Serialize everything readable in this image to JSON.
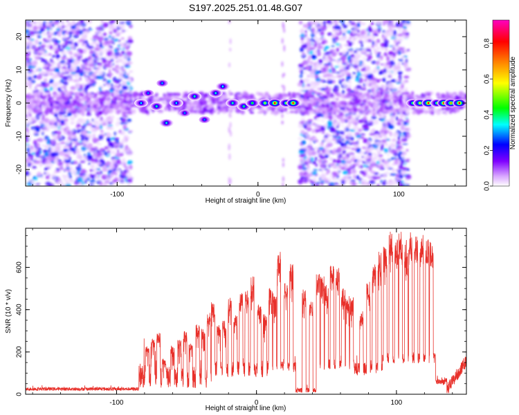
{
  "figure_title": "S197.2025.251.01.48.G07",
  "chart_data": [
    {
      "type": "heatmap",
      "title": "S197.2025.251.01.48.G07",
      "xlabel": "Height of straight line (km)",
      "ylabel": "Frequency (Hz)",
      "xlim": [
        -165,
        148
      ],
      "ylim": [
        -25,
        25
      ],
      "xticks": [
        -100,
        0,
        100
      ],
      "xtick_labels": [
        "-100",
        "0",
        "100"
      ],
      "yticks": [
        -20,
        -10,
        0,
        10,
        20
      ],
      "ytick_labels": [
        "-20",
        "-10",
        "0",
        "10",
        "20"
      ],
      "colorbar": {
        "label": "Normalized spectral amplitude",
        "range": [
          0,
          0.93
        ],
        "ticks": [
          0,
          0.2,
          0.4,
          0.6,
          0.8
        ],
        "tick_labels": [
          "0.0",
          "0.2",
          "0.4",
          "0.6",
          "0.8"
        ],
        "colormap": [
          "#ffffff",
          "#7f00ff",
          "#0000ff",
          "#00ffff",
          "#00ff00",
          "#ffff00",
          "#ff7f00",
          "#ff0000",
          "#ff00c0"
        ]
      },
      "noise_regions": [
        {
          "x_range": [
            -165,
            -90
          ],
          "freq_range": [
            -25,
            25
          ],
          "level": "scattered 0.05-0.3"
        },
        {
          "x_range": [
            30,
            107
          ],
          "freq_range": [
            -25,
            25
          ],
          "level": "scattered 0.05-0.3"
        },
        {
          "x_range": [
            -165,
            148
          ],
          "freq_range": [
            -3,
            3
          ],
          "level": "baseline 0.1"
        }
      ],
      "signal_blobs": [
        {
          "x": -83,
          "f": 0,
          "amp": 0.35
        },
        {
          "x": -78,
          "f": 3,
          "amp": 0.3
        },
        {
          "x": -72,
          "f": -1,
          "amp": 0.4
        },
        {
          "x": -68,
          "f": 6,
          "amp": 0.32
        },
        {
          "x": -65,
          "f": -6,
          "amp": 0.38
        },
        {
          "x": -58,
          "f": 0,
          "amp": 0.35
        },
        {
          "x": -52,
          "f": -3,
          "amp": 0.3
        },
        {
          "x": -45,
          "f": 2,
          "amp": 0.4
        },
        {
          "x": -38,
          "f": -5,
          "amp": 0.3
        },
        {
          "x": -30,
          "f": 3,
          "amp": 0.38
        },
        {
          "x": -25,
          "f": 5,
          "amp": 0.36
        },
        {
          "x": -18,
          "f": 0,
          "amp": 0.4
        },
        {
          "x": -10,
          "f": -1,
          "amp": 0.42
        },
        {
          "x": -4,
          "f": 0,
          "amp": 0.45
        },
        {
          "x": 5,
          "f": 0,
          "amp": 0.55
        },
        {
          "x": 12,
          "f": 0,
          "amp": 0.85
        },
        {
          "x": 20,
          "f": 0,
          "amp": 0.55
        },
        {
          "x": 25,
          "f": 0,
          "amp": 0.82
        },
        {
          "x": 110,
          "f": 0,
          "amp": 0.5
        },
        {
          "x": 115,
          "f": 0,
          "amp": 0.6
        },
        {
          "x": 121,
          "f": 0,
          "amp": 0.85
        },
        {
          "x": 127,
          "f": 0,
          "amp": 0.5
        },
        {
          "x": 132,
          "f": 0,
          "amp": 0.85
        },
        {
          "x": 137,
          "f": 0,
          "amp": 0.7
        },
        {
          "x": 143,
          "f": 0,
          "amp": 0.85
        }
      ]
    },
    {
      "type": "line",
      "xlabel": "Height of straight line (km)",
      "ylabel": "SNR (10 * v/v)",
      "xlim": [
        -165,
        150
      ],
      "ylim": [
        0,
        785
      ],
      "xticks": [
        -100,
        0,
        100
      ],
      "xtick_labels": [
        "-100",
        "0",
        "100"
      ],
      "yticks": [
        0,
        200,
        400,
        600
      ],
      "ytick_labels": [
        "0",
        "200",
        "400",
        "600"
      ],
      "color": "#e8302a",
      "baseline_segments": [
        {
          "x0": -165,
          "x1": -84,
          "base": 25,
          "noise": 8
        },
        {
          "x0": -84,
          "x1": -70,
          "base": 90,
          "noise": 60
        },
        {
          "x0": -70,
          "x1": -30,
          "base": 80,
          "noise": 50
        },
        {
          "x0": -30,
          "x1": 10,
          "base": 120,
          "noise": 40
        },
        {
          "x0": 10,
          "x1": 28,
          "base": 130,
          "noise": 25
        },
        {
          "x0": 28,
          "x1": 45,
          "base": 20,
          "noise": 12
        },
        {
          "x0": 45,
          "x1": 70,
          "base": 140,
          "noise": 25
        },
        {
          "x0": 70,
          "x1": 90,
          "base": 120,
          "noise": 30
        },
        {
          "x0": 90,
          "x1": 128,
          "base": 170,
          "noise": 25
        },
        {
          "x0": 128,
          "x1": 136,
          "base": 60,
          "noise": 15
        },
        {
          "x0": 136,
          "x1": 150,
          "base": 100,
          "noise": 40
        }
      ],
      "pulses": [
        [
          -78,
          230
        ],
        [
          -74,
          270
        ],
        [
          -70,
          290
        ],
        [
          -66,
          170
        ],
        [
          -60,
          230
        ],
        [
          -55,
          260
        ],
        [
          -51,
          300
        ],
        [
          -47,
          240
        ],
        [
          -42,
          330
        ],
        [
          -38,
          310
        ],
        [
          -34,
          390
        ],
        [
          -31,
          440
        ],
        [
          -27,
          330
        ],
        [
          -23,
          350
        ],
        [
          -19,
          470
        ],
        [
          -15,
          380
        ],
        [
          -11,
          480
        ],
        [
          -7,
          490
        ],
        [
          -3,
          560
        ],
        [
          2,
          440
        ],
        [
          6,
          380
        ],
        [
          10,
          510
        ],
        [
          13,
          490
        ],
        [
          16,
          690
        ],
        [
          21,
          540
        ],
        [
          25,
          620
        ],
        [
          34,
          500
        ],
        [
          39,
          440
        ],
        [
          44,
          570
        ],
        [
          47,
          560
        ],
        [
          50,
          520
        ],
        [
          54,
          640
        ],
        [
          58,
          610
        ],
        [
          62,
          500
        ],
        [
          65,
          470
        ],
        [
          68,
          460
        ],
        [
          75,
          400
        ],
        [
          80,
          540
        ],
        [
          84,
          620
        ],
        [
          88,
          680
        ],
        [
          92,
          700
        ],
        [
          96,
          770
        ],
        [
          100,
          740
        ],
        [
          103,
          770
        ],
        [
          107,
          730
        ],
        [
          110,
          770
        ],
        [
          114,
          750
        ],
        [
          118,
          760
        ],
        [
          122,
          740
        ],
        [
          125,
          730
        ]
      ]
    }
  ]
}
